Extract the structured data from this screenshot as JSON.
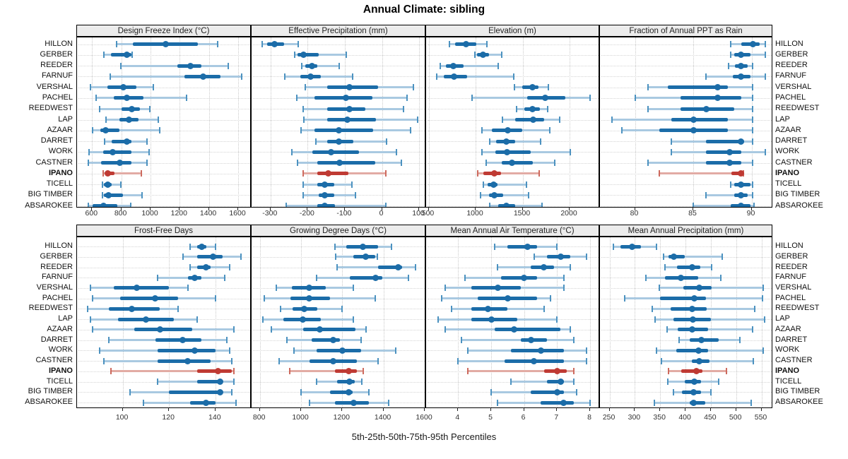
{
  "page": {
    "title": "Annual Climate: sibling",
    "caption": "5th-25th-50th-75th-95th Percentiles"
  },
  "chart_data": {
    "type": "table",
    "subtype": "trellis-percentile-dotplot",
    "title": "Annual Climate: sibling",
    "xlabel": "5th-25th-50th-75th-95th Percentiles",
    "grid": "dotted",
    "legend_position": "none",
    "colors": {
      "series": "#1b6ca8",
      "series_pale": "#a9c9e1",
      "series_cap": "#4c92c0",
      "highlight": "#bf3a33",
      "highlight_pale": "#e2aba4",
      "highlight_cap": "#cd6a5e",
      "strip_bg": "#ececec",
      "border": "#000000"
    },
    "stations": [
      "HILLON",
      "GERBER",
      "REEDER",
      "FARNUF",
      "VERSHAL",
      "PACHEL",
      "REEDWEST",
      "LAP",
      "AZAAR",
      "DARRET",
      "WORK",
      "CASTNER",
      "IPANO",
      "TICELL",
      "BIG TIMBER",
      "ABSAROKEE"
    ],
    "highlight_station": "IPANO",
    "percentiles": [
      5,
      25,
      50,
      75,
      95
    ],
    "panels": [
      {
        "title": "Design Freeze Index (°C)",
        "row": 0,
        "col": 0,
        "domain": [
          497,
          1692
        ],
        "ticks": [
          600,
          800,
          1000,
          1200,
          1400,
          1600
        ],
        "values": [
          [
            770,
            880,
            1105,
            1325,
            1460
          ],
          [
            680,
            730,
            840,
            870,
            875
          ],
          [
            795,
            1185,
            1275,
            1350,
            1530
          ],
          [
            725,
            1230,
            1360,
            1480,
            1625
          ],
          [
            590,
            705,
            815,
            905,
            1020
          ],
          [
            625,
            750,
            840,
            950,
            1245
          ],
          [
            650,
            800,
            870,
            930,
            995
          ],
          [
            695,
            785,
            850,
            920,
            1055
          ],
          [
            605,
            655,
            695,
            785,
            1065
          ],
          [
            685,
            735,
            840,
            870,
            975
          ],
          [
            580,
            675,
            740,
            870,
            990
          ],
          [
            575,
            660,
            790,
            870,
            975
          ],
          [
            675,
            690,
            705,
            755,
            935
          ],
          [
            670,
            680,
            705,
            735,
            795
          ],
          [
            670,
            680,
            710,
            810,
            940
          ],
          [
            575,
            605,
            680,
            775,
            865
          ]
        ]
      },
      {
        "title": "Effective Precipitation (mm)",
        "row": 0,
        "col": 1,
        "domain": [
          -351,
          119
        ],
        "ticks": [
          -300,
          -200,
          -100,
          0,
          100
        ],
        "values": [
          [
            -322,
            -310,
            -289,
            -264,
            -226
          ],
          [
            -235,
            -228,
            -212,
            -171,
            -97
          ],
          [
            -216,
            -206,
            -188,
            -174,
            -116
          ],
          [
            -261,
            -219,
            -192,
            -165,
            -79
          ],
          [
            -206,
            -148,
            -87,
            -10,
            84
          ],
          [
            -229,
            -181,
            -97,
            -26,
            68
          ],
          [
            -213,
            -148,
            -87,
            -45,
            58
          ],
          [
            -210,
            -148,
            -94,
            -16,
            97
          ],
          [
            -218,
            -181,
            -117,
            -23,
            77
          ],
          [
            -177,
            -148,
            -117,
            -77,
            13
          ],
          [
            -242,
            -187,
            -137,
            -61,
            39
          ],
          [
            -227,
            -174,
            -115,
            -19,
            52
          ],
          [
            -212,
            -174,
            -145,
            -90,
            11
          ],
          [
            -213,
            -174,
            -154,
            -129,
            -81
          ],
          [
            -213,
            -171,
            -154,
            -129,
            -72
          ],
          [
            -257,
            -174,
            -154,
            -126,
            10
          ]
        ]
      },
      {
        "title": "Elevation (m)",
        "row": 0,
        "col": 2,
        "domain": [
          474,
          2323
        ],
        "ticks": [
          500,
          1000,
          1500,
          2000
        ],
        "values": [
          [
            725,
            783,
            895,
            1008,
            1120
          ],
          [
            990,
            1015,
            1082,
            1145,
            1275
          ],
          [
            625,
            683,
            765,
            870,
            1240
          ],
          [
            590,
            665,
            770,
            908,
            1408
          ],
          [
            1415,
            1495,
            1608,
            1670,
            1775
          ],
          [
            965,
            1545,
            1740,
            1958,
            2220
          ],
          [
            1433,
            1520,
            1608,
            1683,
            1770
          ],
          [
            1283,
            1420,
            1615,
            1733,
            1895
          ],
          [
            1065,
            1170,
            1340,
            1495,
            1790
          ],
          [
            1153,
            1220,
            1325,
            1420,
            1695
          ],
          [
            1065,
            1208,
            1333,
            1583,
            2008
          ],
          [
            1115,
            1275,
            1390,
            1608,
            1845
          ],
          [
            1020,
            1083,
            1200,
            1270,
            1675
          ],
          [
            1083,
            1125,
            1190,
            1233,
            1540
          ],
          [
            1050,
            1145,
            1200,
            1295,
            1565
          ],
          [
            1150,
            1240,
            1325,
            1420,
            1708
          ]
        ]
      },
      {
        "title": "Fraction of Annual PPT as Rain",
        "row": 0,
        "col": 3,
        "domain": [
          77,
          91.85
        ],
        "ticks": [
          80,
          85,
          90
        ],
        "values": [
          [
            88.2,
            89.1,
            90.1,
            90.7,
            91.2
          ],
          [
            88.2,
            88.5,
            89.1,
            89.9,
            91.2
          ],
          [
            88.0,
            88.6,
            89.1,
            89.7,
            90.1
          ],
          [
            86.1,
            88.4,
            89.1,
            89.9,
            91.2
          ],
          [
            81.1,
            82.8,
            87.1,
            88.0,
            90.1
          ],
          [
            80.0,
            83.9,
            87.1,
            89.1,
            90.1
          ],
          [
            81.1,
            83.9,
            86.1,
            88.5,
            90.1
          ],
          [
            78.0,
            83.1,
            85.0,
            88.0,
            90.1
          ],
          [
            78.9,
            82.1,
            85.0,
            88.0,
            90.1
          ],
          [
            83.1,
            86.1,
            89.1,
            89.4,
            90.1
          ],
          [
            83.1,
            86.1,
            88.1,
            89.1,
            91.2
          ],
          [
            81.1,
            86.1,
            88.1,
            89.1,
            90.1
          ],
          [
            82.1,
            88.3,
            89.1,
            89.2,
            89.3
          ],
          [
            88.2,
            88.5,
            89.1,
            89.9,
            90.1
          ],
          [
            86.1,
            88.5,
            89.1,
            89.7,
            90.1
          ],
          [
            85.0,
            88.2,
            89.1,
            89.9,
            90.2
          ]
        ]
      },
      {
        "title": "Frost-Free Days",
        "row": 1,
        "col": 0,
        "domain": [
          80.3,
          155.6
        ],
        "ticks": [
          100,
          120,
          140
        ],
        "values": [
          [
            129,
            132,
            134,
            136,
            140
          ],
          [
            126,
            132,
            139,
            143,
            151
          ],
          [
            129,
            132,
            136,
            138,
            146
          ],
          [
            115,
            128,
            131,
            134,
            144
          ],
          [
            86,
            96,
            106,
            120,
            128
          ],
          [
            87,
            99,
            114,
            124,
            140
          ],
          [
            85,
            94,
            104,
            116,
            124
          ],
          [
            86,
            98,
            110,
            122,
            132
          ],
          [
            87,
            105,
            116,
            130,
            148
          ],
          [
            94,
            114,
            126,
            134,
            145
          ],
          [
            90,
            115,
            131,
            140,
            146
          ],
          [
            92,
            115,
            128,
            138,
            147
          ],
          [
            95,
            132,
            141,
            147,
            148
          ],
          [
            115,
            132,
            142,
            143,
            148
          ],
          [
            103,
            120,
            142,
            143,
            147
          ],
          [
            109,
            129,
            136,
            140,
            149
          ]
        ]
      },
      {
        "title": "Growing Degree Days (°C)",
        "row": 1,
        "col": 1,
        "domain": [
          760,
          1607
        ],
        "ticks": [
          800,
          1000,
          1200,
          1400,
          1600
        ],
        "values": [
          [
            1163,
            1220,
            1300,
            1375,
            1440
          ],
          [
            1168,
            1255,
            1315,
            1360,
            1370
          ],
          [
            1175,
            1375,
            1470,
            1490,
            1555
          ],
          [
            1075,
            1235,
            1360,
            1395,
            1520
          ],
          [
            880,
            955,
            1040,
            1120,
            1255
          ],
          [
            820,
            950,
            1038,
            1140,
            1360
          ],
          [
            900,
            960,
            1015,
            1080,
            1200
          ],
          [
            815,
            915,
            1010,
            1095,
            1255
          ],
          [
            855,
            1010,
            1090,
            1265,
            1315
          ],
          [
            930,
            1050,
            1155,
            1190,
            1290
          ],
          [
            965,
            1075,
            1200,
            1290,
            1460
          ],
          [
            895,
            1040,
            1155,
            1270,
            1375
          ],
          [
            945,
            1165,
            1230,
            1270,
            1300
          ],
          [
            1075,
            1175,
            1235,
            1260,
            1295
          ],
          [
            1000,
            1140,
            1230,
            1250,
            1330
          ],
          [
            1040,
            1165,
            1255,
            1330,
            1425
          ]
        ]
      },
      {
        "title": "Mean Annual Air Temperature (°C)",
        "row": 1,
        "col": 2,
        "domain": [
          3.03,
          8.3
        ],
        "ticks": [
          4,
          5,
          6,
          7,
          8
        ],
        "values": [
          [
            5.1,
            5.5,
            6.1,
            6.4,
            7.0
          ],
          [
            6.3,
            6.7,
            7.1,
            7.4,
            7.9
          ],
          [
            5.2,
            6.2,
            6.6,
            6.9,
            7.4
          ],
          [
            4.2,
            5.3,
            6.0,
            6.4,
            7.2
          ],
          [
            3.6,
            4.4,
            5.2,
            5.9,
            7.2
          ],
          [
            3.5,
            4.6,
            5.5,
            6.4,
            6.8
          ],
          [
            3.8,
            4.4,
            4.9,
            5.5,
            6.6
          ],
          [
            3.4,
            4.4,
            5.0,
            5.8,
            7.0
          ],
          [
            3.6,
            5.1,
            5.7,
            7.1,
            7.4
          ],
          [
            4.1,
            5.9,
            6.2,
            6.7,
            7.5
          ],
          [
            4.3,
            5.6,
            6.5,
            7.2,
            7.9
          ],
          [
            4.0,
            5.4,
            6.3,
            7.2,
            7.9
          ],
          [
            4.3,
            6.6,
            7.0,
            7.3,
            7.5
          ],
          [
            5.6,
            6.7,
            7.1,
            7.2,
            7.5
          ],
          [
            5.0,
            6.2,
            7.0,
            7.2,
            7.6
          ],
          [
            5.2,
            6.5,
            7.2,
            7.5,
            8.0
          ]
        ]
      },
      {
        "title": "Mean Annual Precipitation (mm)",
        "row": 1,
        "col": 3,
        "domain": [
          231,
          573
        ],
        "ticks": [
          250,
          300,
          350,
          400,
          450,
          500,
          550
        ],
        "values": [
          [
            257,
            272,
            294,
            312,
            343
          ],
          [
            356,
            366,
            377,
            399,
            472
          ],
          [
            360,
            383,
            413,
            429,
            452
          ],
          [
            322,
            359,
            391,
            425,
            469
          ],
          [
            348,
            395,
            427,
            452,
            553
          ],
          [
            280,
            350,
            417,
            441,
            552
          ],
          [
            334,
            371,
            413,
            442,
            537
          ],
          [
            340,
            376,
            415,
            450,
            556
          ],
          [
            364,
            384,
            413,
            445,
            532
          ],
          [
            387,
            408,
            431,
            466,
            508
          ],
          [
            342,
            382,
            425,
            445,
            554
          ],
          [
            352,
            413,
            427,
            447,
            534
          ],
          [
            366,
            391,
            422,
            433,
            481
          ],
          [
            365,
            399,
            417,
            431,
            466
          ],
          [
            376,
            393,
            416,
            431,
            450
          ],
          [
            338,
            408,
            416,
            439,
            529
          ]
        ]
      }
    ]
  }
}
